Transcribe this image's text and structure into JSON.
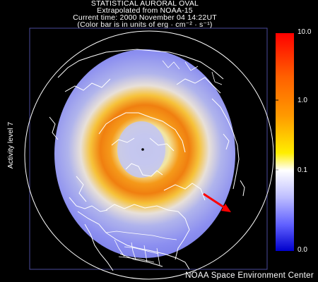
{
  "header": {
    "line1": "STATISTICAL AURORAL OVAL",
    "line2": "Extrapolated from NOAA-15",
    "line3": "Current time: 2000 November 04 14:22UT",
    "line4": "(Color bar is in units of erg · cm⁻² · s⁻¹)"
  },
  "activity_label": "Activity level 7",
  "credit": "NOAA Space Environment Center",
  "colorbar": {
    "ticks": [
      "10.0",
      "1.0",
      "0.1",
      "0.0"
    ],
    "scale": "log",
    "colors": [
      "#ff0000",
      "#ff8c00",
      "#ffff00",
      "#ffffff",
      "#8080ff",
      "#0000cc"
    ]
  },
  "map": {
    "projection": "polar",
    "features": [
      "coastlines",
      "country-borders",
      "us-state-borders",
      "geomagnetic-pole-marker"
    ],
    "annotation": "red arrow pointing toward sun",
    "colors": {
      "arrow": "#ff0000",
      "background": "#000000",
      "lines": "#ffffff"
    }
  }
}
